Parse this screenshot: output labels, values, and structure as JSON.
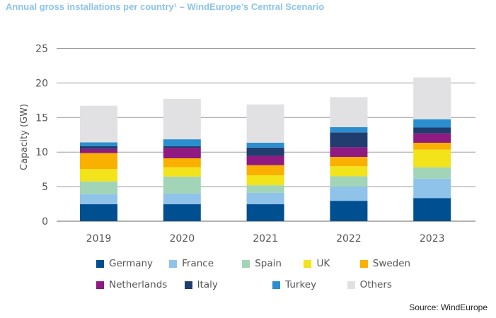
{
  "title": "Annual gross installations per country¹ – WindEurope’s Central Scenario",
  "source": "Source: WindEurope",
  "chart_data": {
    "type": "bar",
    "stacked": true,
    "title": "Annual gross installations per country¹ – WindEurope’s Central Scenario",
    "xlabel": "",
    "ylabel": "Capacity (GW)",
    "ylim": [
      0,
      25
    ],
    "yticks": [
      0,
      5,
      10,
      15,
      20,
      25
    ],
    "grid": true,
    "legend_position": "bottom",
    "categories": [
      "2019",
      "2020",
      "2021",
      "2022",
      "2023"
    ],
    "series": [
      {
        "name": "Germany",
        "color": "#004f91",
        "values": [
          2.45,
          2.45,
          2.45,
          2.95,
          3.35
        ]
      },
      {
        "name": "France",
        "color": "#8fc3ea",
        "values": [
          1.45,
          1.55,
          1.65,
          2.05,
          2.8
        ]
      },
      {
        "name": "Spain",
        "color": "#a2d4b8",
        "values": [
          1.85,
          2.45,
          1.1,
          1.5,
          1.65
        ]
      },
      {
        "name": "UK",
        "color": "#f2e31a",
        "values": [
          1.8,
          1.35,
          1.45,
          1.45,
          2.55
        ]
      },
      {
        "name": "Sweden",
        "color": "#f9b000",
        "values": [
          2.3,
          1.3,
          1.45,
          1.35,
          1.0
        ]
      },
      {
        "name": "Netherlands",
        "color": "#8e1a82",
        "values": [
          0.6,
          1.5,
          1.35,
          1.4,
          1.35
        ]
      },
      {
        "name": "Italy",
        "color": "#1f3d6e",
        "values": [
          0.4,
          0.25,
          1.2,
          2.15,
          0.85
        ]
      },
      {
        "name": "Turkey",
        "color": "#2b8ecf",
        "values": [
          0.55,
          1.0,
          0.7,
          0.75,
          1.2
        ]
      },
      {
        "name": "Others",
        "color": "#e1e1e3",
        "values": [
          5.3,
          5.85,
          5.55,
          4.35,
          6.05
        ]
      }
    ]
  },
  "legend_rows": [
    [
      "Germany",
      "France",
      "Spain",
      "UK",
      "Sweden"
    ],
    [
      "Netherlands",
      "Italy",
      "Turkey",
      "Others"
    ]
  ]
}
